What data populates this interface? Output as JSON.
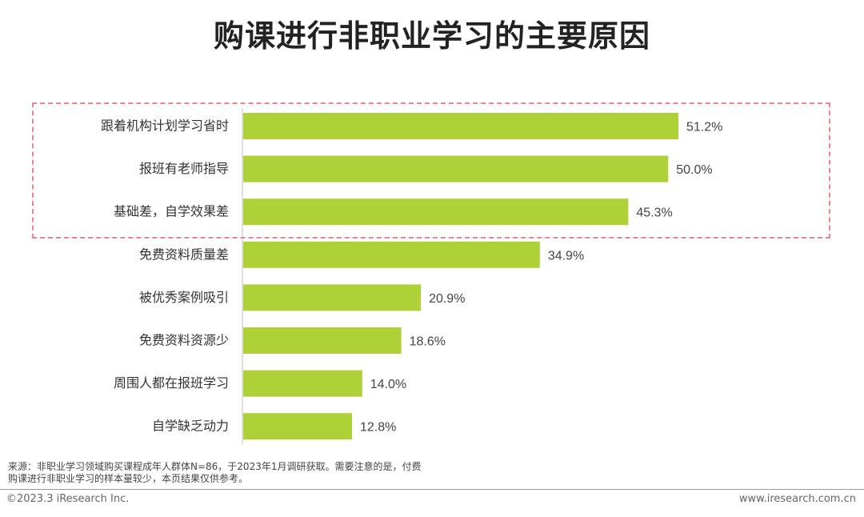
{
  "chart_data": {
    "type": "bar",
    "orientation": "horizontal",
    "title": "购课进行非职业学习的主要原因",
    "categories": [
      "跟着机构计划学习省时",
      "报班有老师指导",
      "基础差，自学效果差",
      "免费资料质量差",
      "被优秀案例吸引",
      "免费资料资源少",
      "周围人都在报班学习",
      "自学缺乏动力"
    ],
    "values": [
      51.2,
      50.0,
      45.3,
      34.9,
      20.9,
      18.6,
      14.0,
      12.8
    ],
    "value_labels": [
      "51.2%",
      "50.0%",
      "45.3%",
      "34.9%",
      "20.9%",
      "18.6%",
      "14.0%",
      "12.8%"
    ],
    "unit": "%",
    "xlim": [
      0,
      51.2
    ],
    "highlighted_categories": [
      "跟着机构计划学习省时",
      "报班有老师指导",
      "基础差，自学效果差"
    ],
    "bar_color": "#add136",
    "highlight_color": "#e8858d"
  },
  "source_note": "来源：非职业学习领域购买课程成年人群体N=86，于2023年1月调研获取。需要注意的是，付费购课进行非职业学习的样本量较少，本页结果仅供参考。",
  "copyright": "©2023.3 iResearch Inc.",
  "website": "www.iresearch.com.cn"
}
